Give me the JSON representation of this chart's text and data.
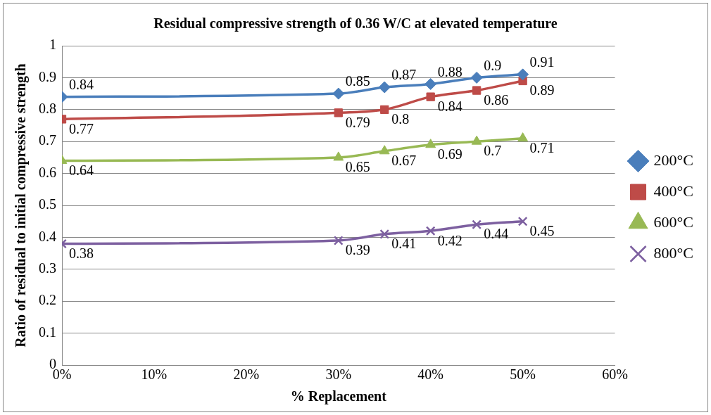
{
  "chart_data": {
    "type": "line",
    "title": "Residual compressive strength of 0.36 W/C at elevated temperature",
    "xlabel": "% Replacement",
    "ylabel": "Ratio of residual to initial compressive strength",
    "x": [
      0,
      30,
      35,
      40,
      45,
      50
    ],
    "series": [
      {
        "name": "200°C",
        "color": "#4a7ebb",
        "marker": "diamond",
        "values": [
          0.84,
          0.85,
          0.87,
          0.88,
          0.9,
          0.91
        ]
      },
      {
        "name": "400°C",
        "color": "#be4b48",
        "marker": "square",
        "values": [
          0.77,
          0.79,
          0.8,
          0.84,
          0.86,
          0.89
        ]
      },
      {
        "name": "600°C",
        "color": "#98b954",
        "marker": "triangle",
        "values": [
          0.64,
          0.65,
          0.67,
          0.69,
          0.7,
          0.71
        ]
      },
      {
        "name": "800°C",
        "color": "#7d60a0",
        "marker": "cross",
        "values": [
          0.38,
          0.39,
          0.41,
          0.42,
          0.44,
          0.45
        ]
      }
    ],
    "xlim": [
      0,
      60
    ],
    "xticks": [
      {
        "value": 0,
        "label": "0%"
      },
      {
        "value": 10,
        "label": "10%"
      },
      {
        "value": 20,
        "label": "20%"
      },
      {
        "value": 30,
        "label": "30%"
      },
      {
        "value": 40,
        "label": "40%"
      },
      {
        "value": 50,
        "label": "50%"
      },
      {
        "value": 60,
        "label": "60%"
      }
    ],
    "ylim": [
      0,
      1
    ],
    "yticks": [
      0,
      0.1,
      0.2,
      0.3,
      0.4,
      0.5,
      0.6,
      0.7,
      0.8,
      0.9,
      1
    ],
    "grid": "y",
    "legend": "right",
    "data_labels": true,
    "line_style": "solid"
  }
}
